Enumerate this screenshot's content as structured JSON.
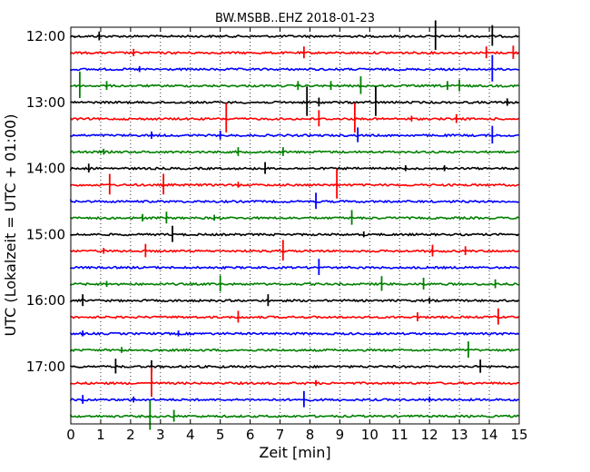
{
  "chart_data": {
    "type": "line",
    "title": "BW.MSBB..EHZ 2018-01-23",
    "xlabel": "Zeit  [min]",
    "ylabel": "UTC (Lokalzeit = UTC + 01:00)",
    "xlim": [
      0,
      15
    ],
    "x_ticks": [
      "0",
      "1",
      "2",
      "3",
      "4",
      "5",
      "6",
      "7",
      "8",
      "9",
      "10",
      "11",
      "12",
      "13",
      "14",
      "15"
    ],
    "y_tick_labels": [
      "12:00",
      "13:00",
      "14:00",
      "15:00",
      "16:00",
      "17:00"
    ],
    "grid": "vertical dotted at each minute",
    "line_colors": [
      "#000000",
      "#ff0000",
      "#0000ff",
      "#008000"
    ],
    "trace_start_times": [
      "12:00",
      "12:15",
      "12:30",
      "12:45",
      "13:00",
      "13:15",
      "13:30",
      "13:45",
      "14:00",
      "14:15",
      "14:30",
      "14:45",
      "15:00",
      "15:15",
      "15:30",
      "15:45",
      "16:00",
      "16:15",
      "16:30",
      "16:45",
      "17:00",
      "17:15",
      "17:30",
      "17:45"
    ],
    "spikes": [
      [
        [
          0.95,
          0.3
        ],
        [
          12.2,
          1.0
        ],
        [
          14.1,
          0.7
        ]
      ],
      [
        [
          2.1,
          0.25
        ],
        [
          7.8,
          0.4
        ],
        [
          13.9,
          0.4
        ],
        [
          14.8,
          0.45
        ]
      ],
      [
        [
          2.3,
          0.2
        ],
        [
          14.1,
          0.9
        ]
      ],
      [
        [
          0.3,
          0.9
        ],
        [
          1.2,
          0.3
        ],
        [
          7.6,
          0.3
        ],
        [
          8.7,
          0.3
        ],
        [
          9.7,
          0.6
        ],
        [
          12.6,
          0.3
        ],
        [
          13.0,
          0.4
        ]
      ],
      [
        [
          7.9,
          1.0
        ],
        [
          8.3,
          0.3
        ],
        [
          10.2,
          1.0
        ],
        [
          14.6,
          0.25
        ]
      ],
      [
        [
          5.2,
          1.0
        ],
        [
          8.3,
          0.55
        ],
        [
          9.5,
          1.0
        ],
        [
          11.4,
          0.2
        ],
        [
          12.9,
          0.3
        ]
      ],
      [
        [
          2.7,
          0.25
        ],
        [
          5.0,
          0.3
        ],
        [
          9.6,
          0.5
        ],
        [
          14.1,
          0.6
        ]
      ],
      [
        [
          1.1,
          0.2
        ],
        [
          5.6,
          0.3
        ],
        [
          7.1,
          0.3
        ]
      ],
      [
        [
          0.6,
          0.3
        ],
        [
          6.5,
          0.4
        ],
        [
          11.2,
          0.2
        ],
        [
          12.5,
          0.2
        ]
      ],
      [
        [
          1.3,
          0.7
        ],
        [
          3.1,
          0.7
        ],
        [
          5.6,
          0.2
        ],
        [
          8.9,
          1.0
        ]
      ],
      [
        [
          8.2,
          0.55
        ]
      ],
      [
        [
          2.4,
          0.25
        ],
        [
          3.2,
          0.4
        ],
        [
          4.8,
          0.2
        ],
        [
          9.4,
          0.5
        ]
      ],
      [
        [
          3.4,
          0.55
        ],
        [
          9.8,
          0.2
        ]
      ],
      [
        [
          1.1,
          0.2
        ],
        [
          2.5,
          0.45
        ],
        [
          7.1,
          0.7
        ],
        [
          12.1,
          0.4
        ],
        [
          13.2,
          0.3
        ]
      ],
      [
        [
          8.3,
          0.55
        ]
      ],
      [
        [
          1.2,
          0.2
        ],
        [
          5.0,
          0.55
        ],
        [
          10.4,
          0.5
        ],
        [
          11.8,
          0.4
        ],
        [
          14.2,
          0.3
        ]
      ],
      [
        [
          0.4,
          0.4
        ],
        [
          6.6,
          0.4
        ],
        [
          12.0,
          0.2
        ]
      ],
      [
        [
          5.6,
          0.4
        ],
        [
          11.6,
          0.3
        ],
        [
          14.3,
          0.55
        ]
      ],
      [
        [
          0.4,
          0.2
        ],
        [
          3.6,
          0.2
        ]
      ],
      [
        [
          1.7,
          0.2
        ],
        [
          13.3,
          0.55
        ]
      ],
      [
        [
          1.5,
          0.5
        ],
        [
          2.7,
          0.4
        ],
        [
          13.7,
          0.45
        ]
      ],
      [
        [
          2.7,
          1.0
        ],
        [
          8.2,
          0.2
        ]
      ],
      [
        [
          0.4,
          0.3
        ],
        [
          2.1,
          0.2
        ],
        [
          7.8,
          0.55
        ],
        [
          12.0,
          0.2
        ]
      ],
      [
        [
          2.65,
          1.0
        ],
        [
          3.45,
          0.4
        ]
      ]
    ]
  }
}
